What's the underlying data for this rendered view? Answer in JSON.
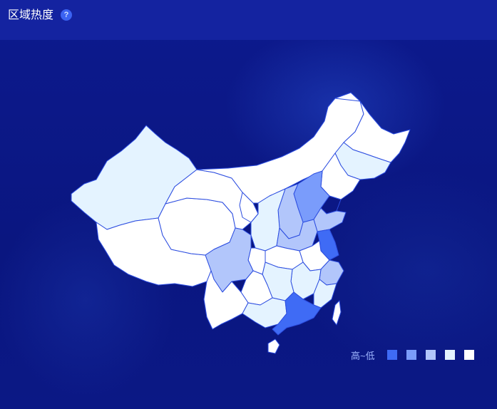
{
  "header": {
    "title": "区域热度",
    "help_icon": "?"
  },
  "legend": {
    "label": "高~低",
    "levels": [
      {
        "color": "#3f6bf5"
      },
      {
        "color": "#7a9cfb"
      },
      {
        "color": "#b2c6fb"
      },
      {
        "color": "#e4f3ff"
      },
      {
        "color": "#ffffff"
      }
    ]
  },
  "colors": {
    "background": "#0b1785",
    "header": "#1423a0",
    "border": "#2c4de0"
  }
}
